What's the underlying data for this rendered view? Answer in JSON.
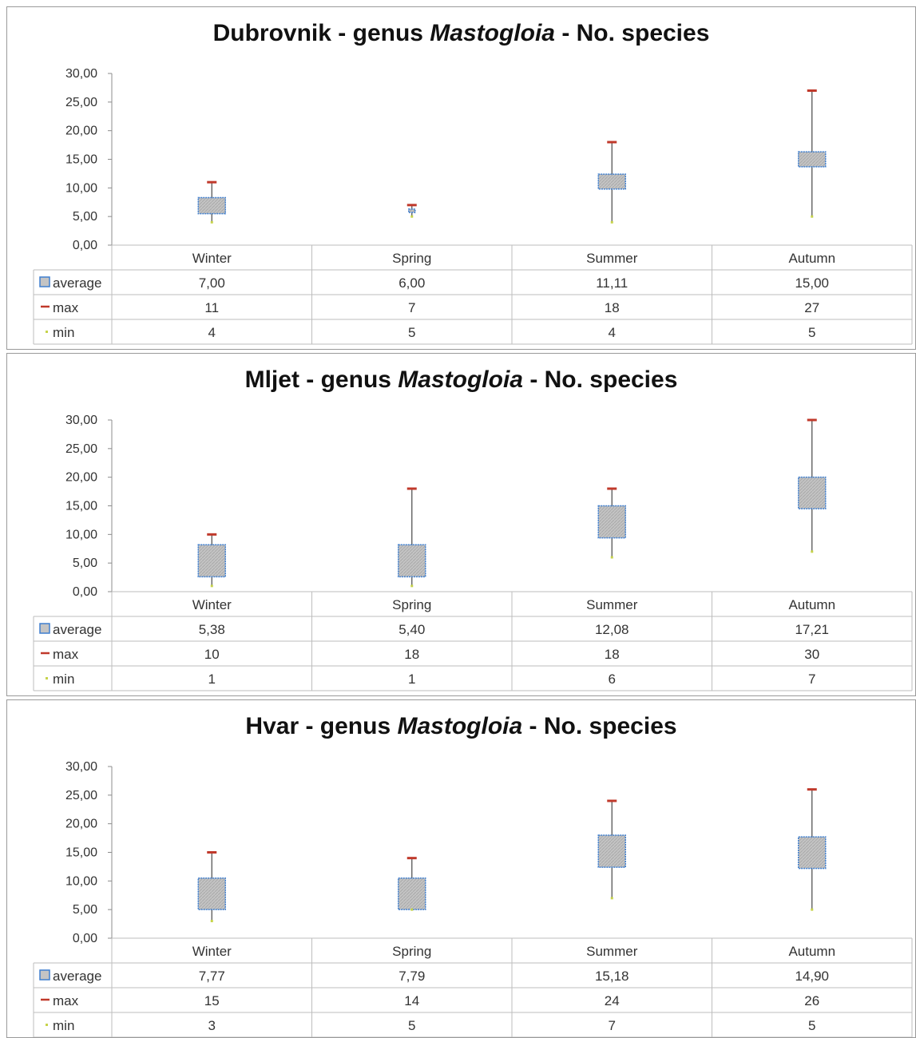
{
  "legend": {
    "average": "average",
    "max": "max",
    "min": "min"
  },
  "colors": {
    "box_fill": "#c4c4c4",
    "box_border": "#3f7fcf",
    "max_marker": "#c0392b",
    "min_marker": "#c6d34a",
    "whisker": "#555555",
    "grid": "#bdbdbd"
  },
  "chart_data": [
    {
      "type": "table",
      "title": {
        "pre": "Dubrovnik - genus ",
        "italic": "Mastogloia",
        "post": " - No. species"
      },
      "ylim": [
        0,
        30
      ],
      "ytick_labels": [
        "0,00",
        "5,00",
        "10,00",
        "15,00",
        "20,00",
        "25,00",
        "30,00"
      ],
      "categories": [
        "Winter",
        "Spring",
        "Summer",
        "Autumn"
      ],
      "average_labels": [
        "7,00",
        "6,00",
        "11,11",
        "15,00"
      ],
      "max_labels": [
        "11",
        "7",
        "18",
        "27"
      ],
      "min_labels": [
        "4",
        "5",
        "4",
        "5"
      ],
      "average": [
        7.0,
        6.0,
        11.11,
        15.0
      ],
      "max": [
        11,
        7,
        18,
        27
      ],
      "min": [
        4,
        5,
        4,
        5
      ],
      "box_low": [
        5.5,
        5.7,
        9.8,
        13.7
      ],
      "box_high": [
        8.3,
        6.3,
        12.4,
        16.3
      ]
    },
    {
      "type": "table",
      "title": {
        "pre": "Mljet - genus ",
        "italic": "Mastogloia",
        "post": " - No. species"
      },
      "ylim": [
        0,
        30
      ],
      "ytick_labels": [
        "0,00",
        "5,00",
        "10,00",
        "15,00",
        "20,00",
        "25,00",
        "30,00"
      ],
      "categories": [
        "Winter",
        "Spring",
        "Summer",
        "Autumn"
      ],
      "average_labels": [
        "5,38",
        "5,40",
        "12,08",
        "17,21"
      ],
      "max_labels": [
        "10",
        "18",
        "18",
        "30"
      ],
      "min_labels": [
        "1",
        "1",
        "6",
        "7"
      ],
      "average": [
        5.38,
        5.4,
        12.08,
        17.21
      ],
      "max": [
        10,
        18,
        18,
        30
      ],
      "min": [
        1,
        1,
        6,
        7
      ],
      "box_low": [
        2.6,
        2.6,
        9.4,
        14.5
      ],
      "box_high": [
        8.2,
        8.2,
        15.0,
        20.0
      ]
    },
    {
      "type": "table",
      "title": {
        "pre": "Hvar - genus ",
        "italic": "Mastogloia",
        "post": " - No. species"
      },
      "ylim": [
        0,
        30
      ],
      "ytick_labels": [
        "0,00",
        "5,00",
        "10,00",
        "15,00",
        "20,00",
        "25,00",
        "30,00"
      ],
      "categories": [
        "Winter",
        "Spring",
        "Summer",
        "Autumn"
      ],
      "average_labels": [
        "7,77",
        "7,79",
        "15,18",
        "14,90"
      ],
      "max_labels": [
        "15",
        "14",
        "24",
        "26"
      ],
      "min_labels": [
        "3",
        "5",
        "7",
        "5"
      ],
      "average": [
        7.77,
        7.79,
        15.18,
        14.9
      ],
      "max": [
        15,
        14,
        24,
        26
      ],
      "min": [
        3,
        5,
        7,
        5
      ],
      "box_low": [
        5.0,
        5.0,
        12.4,
        12.2
      ],
      "box_high": [
        10.5,
        10.5,
        18.0,
        17.7
      ]
    }
  ]
}
